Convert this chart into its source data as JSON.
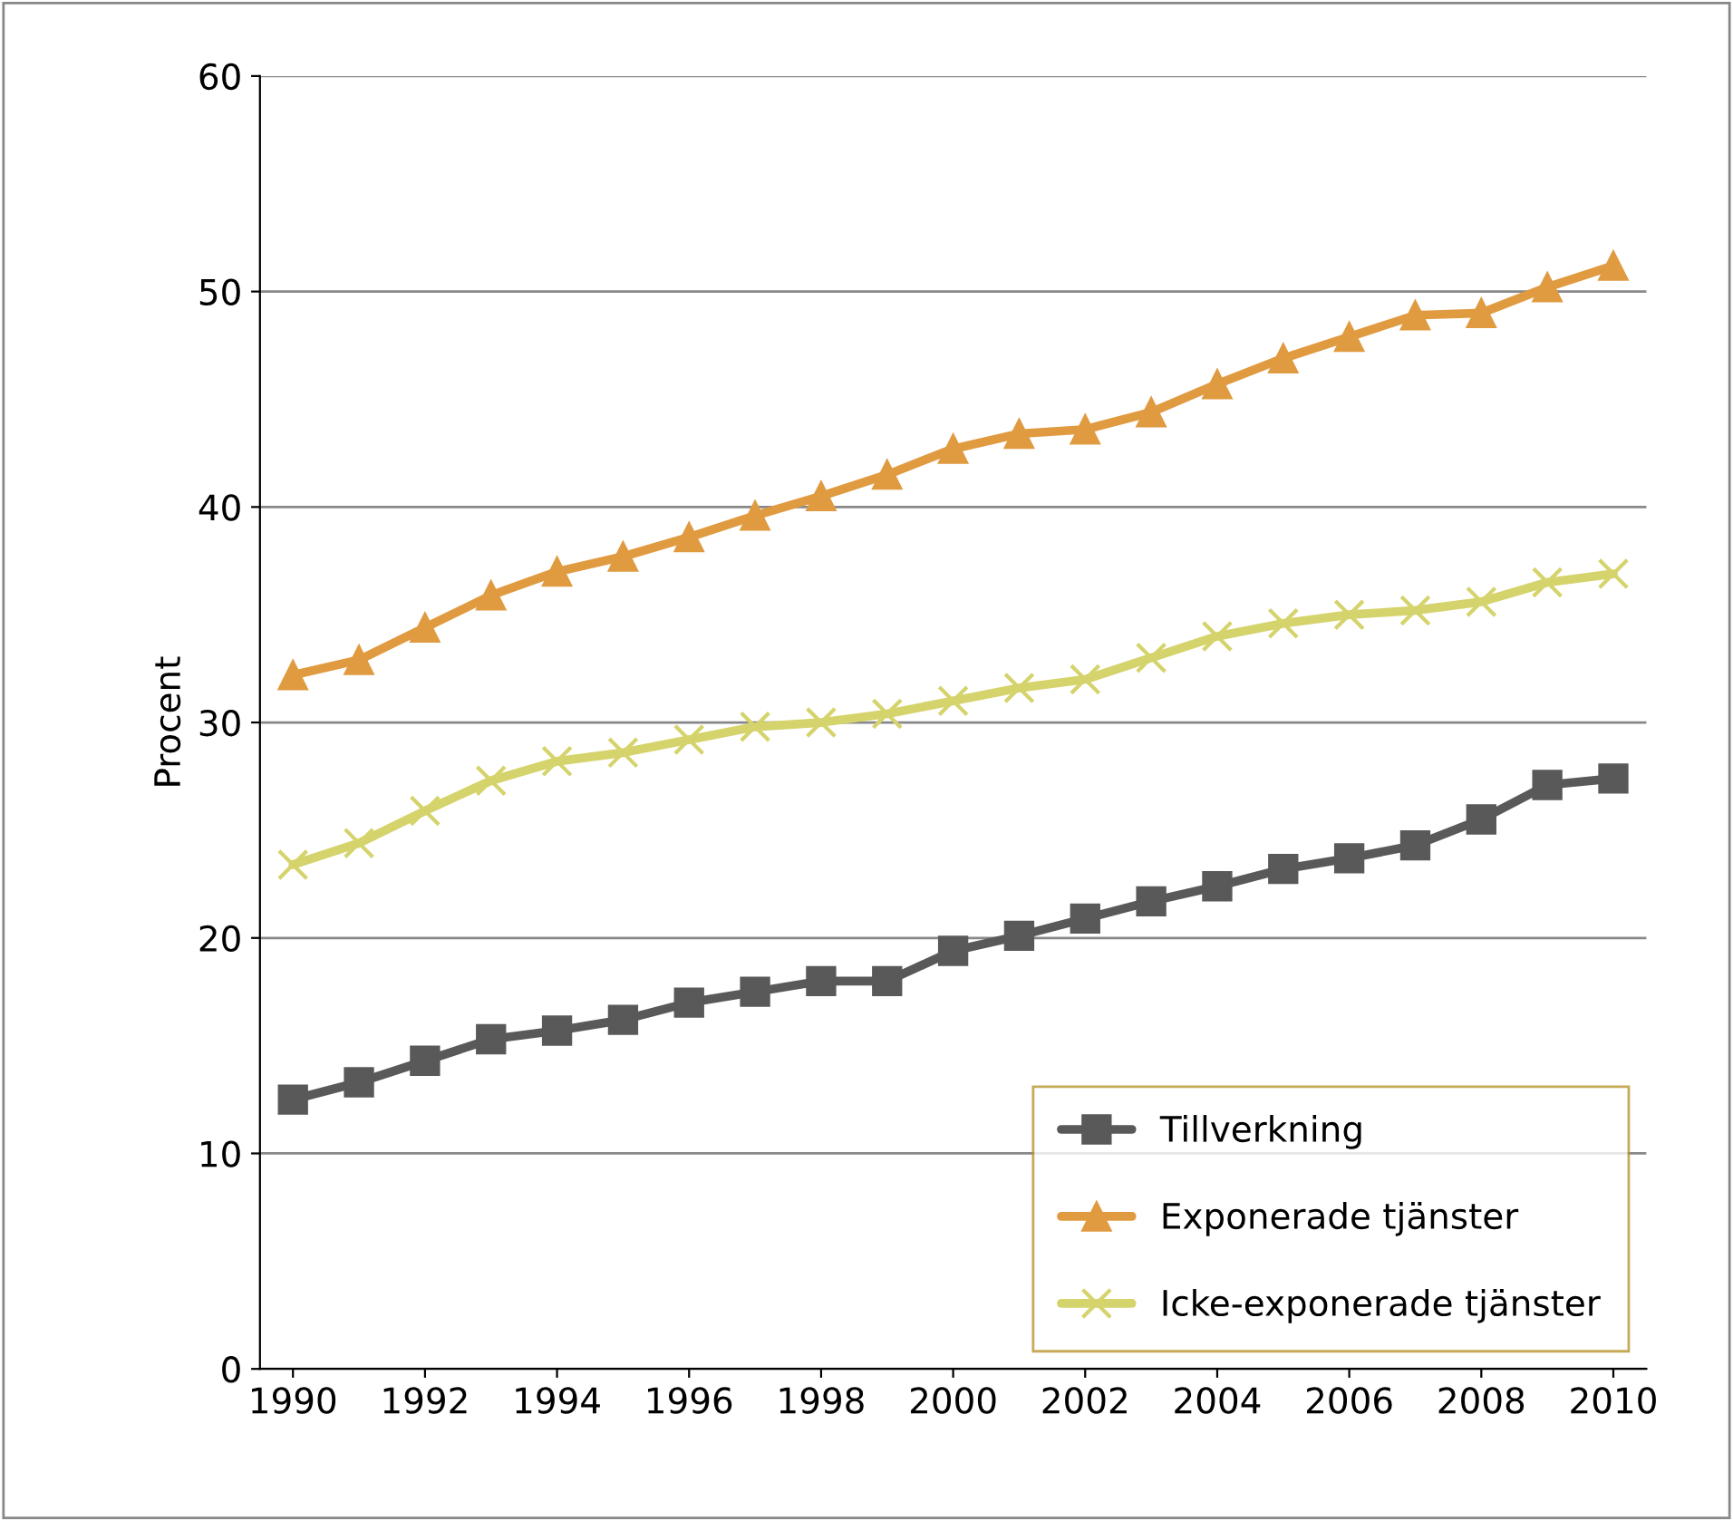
{
  "chart_data": {
    "type": "line",
    "ylabel": "Procent",
    "x": [
      1990,
      1991,
      1992,
      1993,
      1994,
      1995,
      1996,
      1997,
      1998,
      1999,
      2000,
      2001,
      2002,
      2003,
      2004,
      2005,
      2006,
      2007,
      2008,
      2009,
      2010
    ],
    "series": [
      {
        "name": "Tillverkning",
        "color": "#595959",
        "marker": "square",
        "values": [
          12.5,
          13.3,
          14.3,
          15.3,
          15.7,
          16.2,
          17.0,
          17.5,
          18.0,
          18.0,
          19.4,
          20.1,
          20.9,
          21.7,
          22.4,
          23.2,
          23.7,
          24.3,
          25.5,
          27.1,
          27.4
        ]
      },
      {
        "name": "Exponerade tjänster",
        "color": "#e09b41",
        "marker": "triangle",
        "values": [
          32.2,
          32.9,
          34.4,
          35.9,
          37.0,
          37.7,
          38.6,
          39.6,
          40.5,
          41.5,
          42.7,
          43.4,
          43.6,
          44.4,
          45.7,
          46.9,
          47.9,
          48.9,
          49.0,
          50.2,
          51.2
        ]
      },
      {
        "name": "Icke-exponerade tjänster",
        "color": "#d5d36b",
        "marker": "cross",
        "values": [
          23.4,
          24.4,
          25.9,
          27.3,
          28.2,
          28.6,
          29.2,
          29.8,
          30.0,
          30.4,
          31.0,
          31.6,
          32.0,
          33.0,
          34.0,
          34.6,
          35.0,
          35.2,
          35.6,
          36.5,
          36.9
        ]
      }
    ],
    "xlim": [
      1989.5,
      2010.5
    ],
    "xticks": [
      1990,
      1992,
      1994,
      1996,
      1998,
      2000,
      2002,
      2004,
      2006,
      2008,
      2010
    ],
    "ylim": [
      0,
      60
    ],
    "yticks": [
      0,
      10,
      20,
      30,
      40,
      50,
      60
    ],
    "grid": "y",
    "legend": "bottom right",
    "line_style": "solid"
  }
}
